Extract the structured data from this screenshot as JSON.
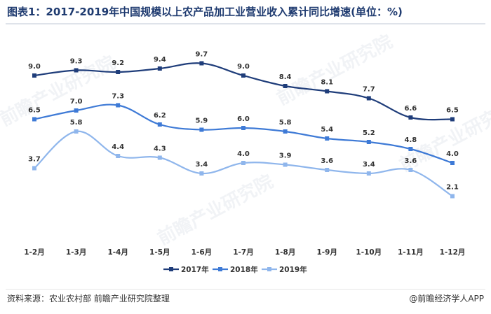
{
  "title": "图表1：2017-2019年中国规模以上农产品加工业营业收入累计同比增速(单位：%)",
  "footer": {
    "source": "资料来源：农业农村部 前瞻产业研究院整理",
    "brand": "@前瞻经济学人APP"
  },
  "watermark": "前瞻产业研究院",
  "chart_data": {
    "type": "line",
    "title": "图表1：2017-2019年中国规模以上农产品加工业营业收入累计同比增速(单位：%)",
    "categories": [
      "1-2月",
      "1-3月",
      "1-4月",
      "1-5月",
      "1-6月",
      "1-7月",
      "1-8月",
      "1-9月",
      "1-10月",
      "1-11月",
      "1-12月"
    ],
    "series": [
      {
        "name": "2017年",
        "values": [
          9.0,
          9.3,
          9.2,
          9.4,
          9.7,
          9.0,
          8.4,
          8.1,
          7.7,
          6.6,
          6.5
        ],
        "color": "#1f3d7a"
      },
      {
        "name": "2018年",
        "values": [
          6.5,
          7.0,
          7.3,
          6.2,
          5.9,
          6.0,
          5.8,
          5.4,
          5.2,
          4.8,
          4.0
        ],
        "color": "#3e7ad6"
      },
      {
        "name": "2019年",
        "values": [
          3.7,
          5.8,
          4.4,
          4.3,
          3.4,
          4.0,
          3.9,
          3.6,
          3.4,
          3.6,
          2.1
        ],
        "color": "#8fb6ec"
      }
    ],
    "smooth": true,
    "grid": false,
    "legend": "bottom"
  }
}
